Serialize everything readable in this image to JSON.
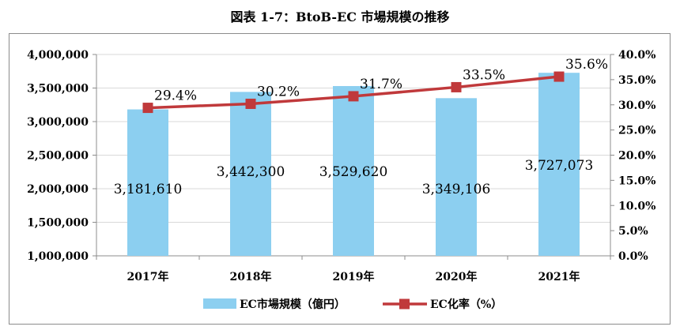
{
  "chart_data": {
    "type": "bar+line",
    "title": "図表 1-7：BtoB-EC 市場規模の推移",
    "categories": [
      "2017年",
      "2018年",
      "2019年",
      "2020年",
      "2021年"
    ],
    "series": [
      {
        "name": "EC市場規模（億円）",
        "type": "bar",
        "axis": "left",
        "color": "#8ccff0",
        "values": [
          3181610,
          3442300,
          3529620,
          3349106,
          3727073
        ],
        "labels": [
          "3,181,610",
          "3,442,300",
          "3,529,620",
          "3,349,106",
          "3,727,073"
        ]
      },
      {
        "name": "EC化率（%）",
        "type": "line",
        "axis": "right",
        "color": "#c0393b",
        "values": [
          29.4,
          30.2,
          31.7,
          33.5,
          35.6
        ],
        "labels": [
          "29.4%",
          "30.2%",
          "31.7%",
          "33.5%",
          "35.6%"
        ]
      }
    ],
    "y_left": {
      "min": 1000000,
      "max": 4000000,
      "ticks": [
        1000000,
        1500000,
        2000000,
        2500000,
        3000000,
        3500000,
        4000000
      ],
      "tick_labels": [
        "1,000,000",
        "1,500,000",
        "2,000,000",
        "2,500,000",
        "3,000,000",
        "3,500,000",
        "4,000,000"
      ]
    },
    "y_right": {
      "min": 0,
      "max": 40,
      "ticks": [
        0,
        5,
        10,
        15,
        20,
        25,
        30,
        35,
        40
      ],
      "tick_labels": [
        "0.0%",
        "5.0%",
        "10.0%",
        "15.0%",
        "20.0%",
        "25.0%",
        "30.0%",
        "35.0%",
        "40.0%"
      ]
    },
    "grid": true,
    "legend_position": "bottom"
  }
}
